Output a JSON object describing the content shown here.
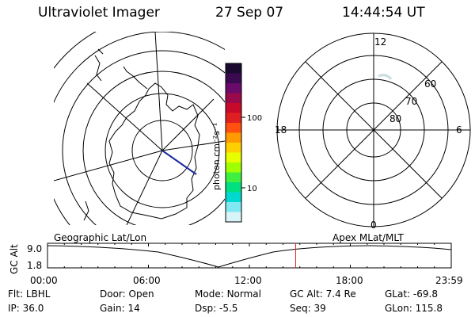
{
  "header": {
    "title": "Ultraviolet Imager",
    "date": "27 Sep 07",
    "time": "14:44:54 UT"
  },
  "colorbar": {
    "unit_label": "photon cm⁻²s⁻¹",
    "ticks": [
      "100",
      "10"
    ],
    "colors": [
      "#1a0a30",
      "#3a0a50",
      "#6a0a6a",
      "#9a0a4a",
      "#c80a2a",
      "#e02020",
      "#ff5010",
      "#ff9a00",
      "#ffd000",
      "#e8ff00",
      "#a0ff00",
      "#40f040",
      "#00e080",
      "#00d8d0",
      "#80e8f0",
      "#d8f4f8"
    ]
  },
  "polar_plot": {
    "mlt_labels": {
      "top": "12",
      "left": "18",
      "right": "6",
      "bottom": "0"
    },
    "lat_labels": [
      "60",
      "70",
      "80"
    ]
  },
  "timeline": {
    "ylabel": "GC Alt",
    "ytick_top": "9.0",
    "ytick_bottom": "1.8",
    "left_caption": "Geographic Lat/Lon",
    "right_caption": "Apex MLat/MLT",
    "xticks": [
      "00:00",
      "06:00",
      "12:00",
      "18:00",
      "23:59"
    ],
    "current_time_hours": 14.75
  },
  "status": {
    "row1": [
      {
        "label": "Flt:",
        "value": "LBHL"
      },
      {
        "label": "Door:",
        "value": "Open"
      },
      {
        "label": "Mode:",
        "value": "Normal"
      },
      {
        "label": "GC Alt:",
        "value": "7.4 Re"
      },
      {
        "label": "GLat:",
        "value": "-69.8"
      }
    ],
    "row2": [
      {
        "label": "IP:",
        "value": "36.0"
      },
      {
        "label": "Gain:",
        "value": "14"
      },
      {
        "label": "Dsp:",
        "value": "-5.5"
      },
      {
        "label": "Seq:",
        "value": "39"
      },
      {
        "label": "GLon:",
        "value": "115.8"
      }
    ]
  }
}
